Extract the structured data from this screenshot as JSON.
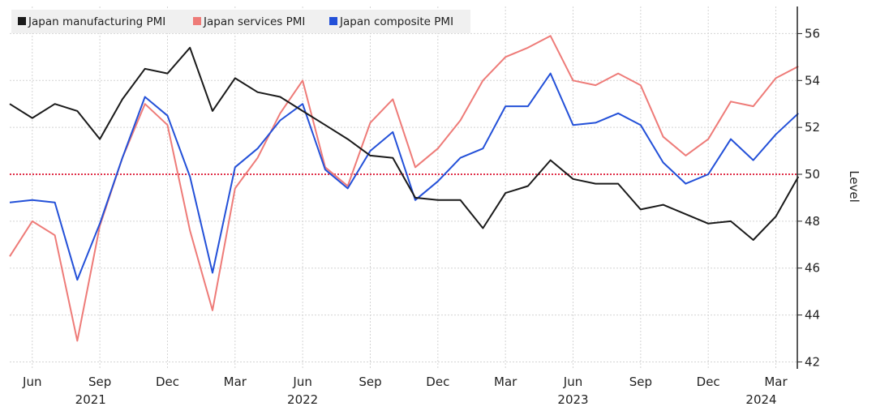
{
  "chart_data": {
    "type": "line",
    "title": "",
    "ylabel": "Level",
    "xlabel": "",
    "ylim": [
      42,
      57
    ],
    "yticks": [
      42,
      44,
      46,
      48,
      50,
      52,
      54,
      56
    ],
    "grid": true,
    "legend_position": "top-left",
    "reference_line": {
      "value": 50,
      "color": "#e0304a",
      "style": "dotted"
    },
    "x": [
      "2021-05",
      "2021-06",
      "2021-07",
      "2021-08",
      "2021-09",
      "2021-10",
      "2021-11",
      "2021-12",
      "2022-01",
      "2022-02",
      "2022-03",
      "2022-04",
      "2022-05",
      "2022-06",
      "2022-07",
      "2022-08",
      "2022-09",
      "2022-10",
      "2022-11",
      "2022-12",
      "2023-01",
      "2023-02",
      "2023-03",
      "2023-04",
      "2023-05",
      "2023-06",
      "2023-07",
      "2023-08",
      "2023-09",
      "2023-10",
      "2023-11",
      "2023-12",
      "2024-01",
      "2024-02",
      "2024-03",
      "2024-04"
    ],
    "xticks": [
      {
        "month": "2021-06",
        "label": "Jun",
        "year": "2021"
      },
      {
        "month": "2021-09",
        "label": "Sep",
        "year": ""
      },
      {
        "month": "2021-12",
        "label": "Dec",
        "year": ""
      },
      {
        "month": "2022-03",
        "label": "Mar",
        "year": ""
      },
      {
        "month": "2022-06",
        "label": "Jun",
        "year": "2022"
      },
      {
        "month": "2022-09",
        "label": "Sep",
        "year": ""
      },
      {
        "month": "2022-12",
        "label": "Dec",
        "year": ""
      },
      {
        "month": "2023-03",
        "label": "Mar",
        "year": ""
      },
      {
        "month": "2023-06",
        "label": "Jun",
        "year": "2023"
      },
      {
        "month": "2023-09",
        "label": "Sep",
        "year": ""
      },
      {
        "month": "2023-12",
        "label": "Dec",
        "year": ""
      },
      {
        "month": "2024-03",
        "label": "Mar",
        "year": "2024"
      }
    ],
    "series": [
      {
        "name": "Japan manufacturing PMI",
        "color": "#1a1a1a",
        "values": [
          53.0,
          52.4,
          53.0,
          52.7,
          51.5,
          53.2,
          54.5,
          54.3,
          55.4,
          52.7,
          54.1,
          53.5,
          53.3,
          52.7,
          52.1,
          51.5,
          50.8,
          50.7,
          49.0,
          48.9,
          48.9,
          47.7,
          49.2,
          49.5,
          50.6,
          49.8,
          49.6,
          49.6,
          48.5,
          48.7,
          48.3,
          47.9,
          48.0,
          47.2,
          48.2,
          49.9
        ]
      },
      {
        "name": "Japan services PMI",
        "color": "#ee7b78",
        "values": [
          46.5,
          48.0,
          47.4,
          42.9,
          47.8,
          50.7,
          53.0,
          52.1,
          47.6,
          44.2,
          49.4,
          50.7,
          52.6,
          54.0,
          50.3,
          49.5,
          52.2,
          53.2,
          50.3,
          51.1,
          52.3,
          54.0,
          55.0,
          55.4,
          55.9,
          54.0,
          53.8,
          54.3,
          53.8,
          51.6,
          50.8,
          51.5,
          53.1,
          52.9,
          54.1,
          54.6
        ]
      },
      {
        "name": "Japan composite PMI",
        "color": "#2350d8",
        "values": [
          48.8,
          48.9,
          48.8,
          45.5,
          47.9,
          50.7,
          53.3,
          52.5,
          49.9,
          45.8,
          50.3,
          51.1,
          52.3,
          53.0,
          50.2,
          49.4,
          51.0,
          51.8,
          48.9,
          49.7,
          50.7,
          51.1,
          52.9,
          52.9,
          54.3,
          52.1,
          52.2,
          52.6,
          52.1,
          50.5,
          49.6,
          50.0,
          51.5,
          50.6,
          51.7,
          52.6
        ]
      }
    ]
  }
}
